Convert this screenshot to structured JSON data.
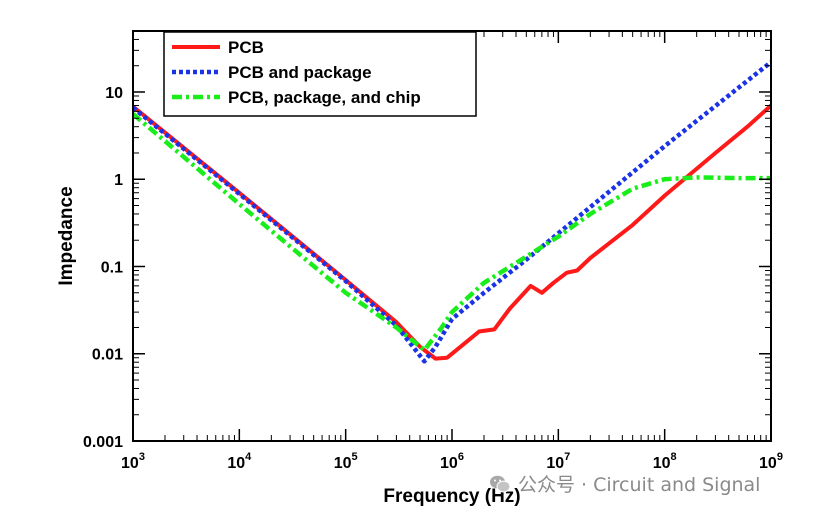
{
  "chart_data": {
    "type": "line",
    "xlabel": "Frequency (Hz)",
    "ylabel": "Impedance",
    "xscale": "log",
    "yscale": "log",
    "xlim": [
      1000,
      1000000000
    ],
    "ylim": [
      0.001,
      50
    ],
    "x_ticks": [
      {
        "base": "10",
        "exp": "3"
      },
      {
        "base": "10",
        "exp": "4"
      },
      {
        "base": "10",
        "exp": "5"
      },
      {
        "base": "10",
        "exp": "6"
      },
      {
        "base": "10",
        "exp": "7"
      },
      {
        "base": "10",
        "exp": "8"
      },
      {
        "base": "10",
        "exp": "9"
      }
    ],
    "y_ticks": [
      "0.001",
      "0.01",
      "0.1",
      "1",
      "10"
    ],
    "grid": false,
    "legend_position": "top-left",
    "series": [
      {
        "name": "PCB",
        "color": "#ff1a1a",
        "style": "solid",
        "points": [
          [
            1000,
            6.8
          ],
          [
            10000,
            0.7
          ],
          [
            100000,
            0.07
          ],
          [
            300000,
            0.023
          ],
          [
            500000,
            0.012
          ],
          [
            700000,
            0.0088
          ],
          [
            900000,
            0.009
          ],
          [
            1300000,
            0.013
          ],
          [
            1800000,
            0.018
          ],
          [
            2500000,
            0.019
          ],
          [
            3500000,
            0.033
          ],
          [
            5500000,
            0.06
          ],
          [
            7000000,
            0.05
          ],
          [
            9000000,
            0.065
          ],
          [
            12000000,
            0.085
          ],
          [
            15000000,
            0.09
          ],
          [
            20000000,
            0.125
          ],
          [
            50000000,
            0.3
          ],
          [
            100000000,
            0.65
          ],
          [
            300000000,
            2
          ],
          [
            600000000,
            4
          ],
          [
            1000000000,
            7
          ]
        ]
      },
      {
        "name": "PCB and package",
        "color": "#1a33e6",
        "style": "dotted",
        "points": [
          [
            1000,
            6.6
          ],
          [
            10000,
            0.68
          ],
          [
            100000,
            0.068
          ],
          [
            300000,
            0.021
          ],
          [
            500000,
            0.0095
          ],
          [
            550000,
            0.0082
          ],
          [
            700000,
            0.012
          ],
          [
            1000000,
            0.025
          ],
          [
            2000000,
            0.05
          ],
          [
            5000000,
            0.12
          ],
          [
            10000000,
            0.24
          ],
          [
            100000000,
            2.4
          ],
          [
            1000000000,
            22
          ]
        ]
      },
      {
        "name": "PCB, package, and chip",
        "color": "#1aee1a",
        "style": "dashdot",
        "points": [
          [
            1000,
            5.6
          ],
          [
            10000,
            0.52
          ],
          [
            100000,
            0.05
          ],
          [
            300000,
            0.02
          ],
          [
            550000,
            0.011
          ],
          [
            800000,
            0.02
          ],
          [
            1000000,
            0.03
          ],
          [
            2000000,
            0.065
          ],
          [
            5000000,
            0.13
          ],
          [
            10000000,
            0.22
          ],
          [
            20000000,
            0.4
          ],
          [
            50000000,
            0.78
          ],
          [
            100000000,
            1.0
          ],
          [
            200000000,
            1.05
          ],
          [
            500000000,
            1.03
          ],
          [
            1000000000,
            1.03
          ]
        ]
      }
    ]
  },
  "watermark": {
    "text": "公众号 · Circuit and Signal",
    "icon": "wechat-icon"
  }
}
